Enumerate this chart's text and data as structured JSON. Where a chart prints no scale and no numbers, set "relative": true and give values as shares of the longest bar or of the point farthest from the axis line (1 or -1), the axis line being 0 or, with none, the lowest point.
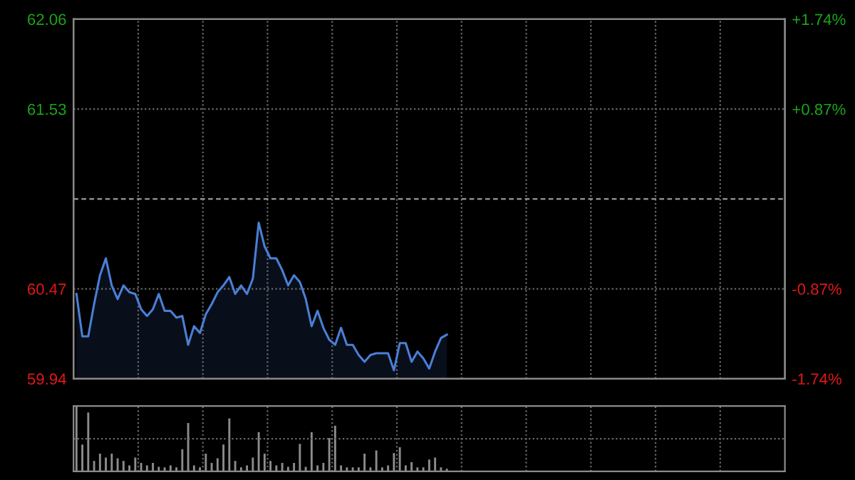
{
  "chart_data": [
    {
      "type": "area",
      "categories": [
        null,
        null,
        null,
        null,
        null,
        null,
        null,
        null,
        null,
        null,
        null,
        null,
        null,
        null,
        null,
        null,
        null,
        null,
        null,
        null,
        null,
        null,
        null,
        null,
        null,
        null,
        null,
        null,
        null,
        null,
        null,
        null,
        null,
        null,
        null,
        null,
        null,
        null,
        null,
        null,
        null,
        null,
        null,
        null,
        null,
        null,
        null,
        null,
        null,
        null,
        null,
        null,
        null,
        null,
        null,
        null,
        null,
        null,
        null,
        null,
        null,
        null,
        null,
        null
      ],
      "series": [
        {
          "color": "#4a7fd6",
          "values": [
            60.44,
            60.19,
            60.19,
            60.38,
            60.55,
            60.65,
            60.49,
            60.41,
            60.49,
            60.45,
            60.44,
            60.35,
            60.31,
            60.35,
            60.44,
            60.34,
            60.34,
            60.3,
            60.31,
            60.14,
            60.25,
            60.21,
            60.32,
            60.38,
            60.45,
            60.49,
            60.54,
            60.44,
            60.49,
            60.44,
            60.53,
            60.86,
            60.72,
            60.65,
            60.65,
            60.58,
            60.49,
            60.55,
            60.51,
            60.41,
            60.25,
            60.34,
            60.24,
            60.17,
            60.14,
            60.24,
            60.14,
            60.14,
            60.08,
            60.04,
            60.08,
            60.09,
            60.09,
            60.09,
            59.99,
            60.15,
            60.15,
            60.04,
            60.1,
            60.06,
            60.0,
            60.1,
            60.18,
            60.2
          ]
        }
      ],
      "ylim": [
        59.94,
        62.06
      ],
      "yticks": [
        59.94,
        60.47,
        61.53,
        62.06
      ],
      "y2lim": [
        -1.74,
        1.74
      ],
      "y2ticks": [
        {
          "value": -1.74,
          "label": "-1.74%"
        },
        {
          "value": -0.87,
          "label": "-0.87%"
        },
        {
          "value": 0.87,
          "label": "+0.87%"
        },
        {
          "value": 1.74,
          "label": "+1.74%"
        }
      ],
      "ref_lines": [
        {
          "axis": "y",
          "value": 61.0,
          "label": null,
          "line_style": "dashed",
          "color": "#9a9a9a"
        }
      ],
      "grid": true,
      "tick_labels": "y"
    },
    {
      "type": "bar",
      "relative": true,
      "categories": [
        null,
        null,
        null,
        null,
        null,
        null,
        null,
        null,
        null,
        null,
        null,
        null,
        null,
        null,
        null,
        null,
        null,
        null,
        null,
        null,
        null,
        null,
        null,
        null,
        null,
        null,
        null,
        null,
        null,
        null,
        null,
        null,
        null,
        null,
        null,
        null,
        null,
        null,
        null,
        null,
        null,
        null,
        null,
        null,
        null,
        null,
        null,
        null,
        null,
        null,
        null,
        null,
        null,
        null,
        null,
        null,
        null,
        null,
        null,
        null,
        null,
        null,
        null,
        null
      ],
      "series": [
        {
          "color": "#8c8c8c",
          "values": [
            1.0,
            0.41,
            0.9,
            0.16,
            0.27,
            0.21,
            0.27,
            0.2,
            0.16,
            0.09,
            0.21,
            0.13,
            0.09,
            0.13,
            0.07,
            0.06,
            0.09,
            0.06,
            0.34,
            0.74,
            0.09,
            0.06,
            0.27,
            0.13,
            0.2,
            0.41,
            0.81,
            0.16,
            0.06,
            0.09,
            0.21,
            0.6,
            0.27,
            0.16,
            0.09,
            0.13,
            0.07,
            0.13,
            0.42,
            0.07,
            0.6,
            0.09,
            0.13,
            0.51,
            0.7,
            0.09,
            0.06,
            0.06,
            0.06,
            0.27,
            0.06,
            0.32,
            0.06,
            0.09,
            0.28,
            0.37,
            0.09,
            0.14,
            0.06,
            0.06,
            0.18,
            0.21,
            0.06,
            0.04
          ]
        }
      ],
      "grid": true,
      "tick_labels": false
    }
  ]
}
